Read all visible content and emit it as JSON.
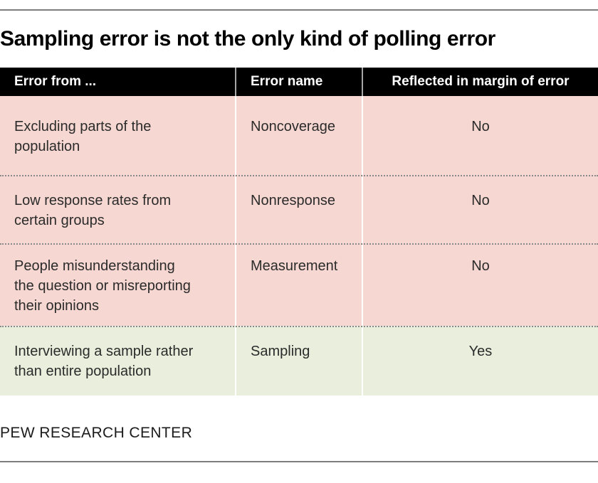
{
  "page": {
    "title": "Sampling error is not the only kind of polling error",
    "footer": "PEW RESEARCH CENTER"
  },
  "table": {
    "columns": [
      {
        "label": "Error from ...",
        "align": "left"
      },
      {
        "label": "Error name",
        "align": "left"
      },
      {
        "label": "Reflected in margin of error",
        "align": "center"
      }
    ],
    "rows": [
      {
        "error_from": "Excluding parts of the\npopulation",
        "error_name": "Noncoverage",
        "reflected": "No",
        "highlighted": false
      },
      {
        "error_from": "Low response rates from\ncertain groups",
        "error_name": "Nonresponse",
        "reflected": "No",
        "highlighted": false
      },
      {
        "error_from": "People misunderstanding\nthe question or misreporting\ntheir opinions",
        "error_name": "Measurement",
        "reflected": "No",
        "highlighted": false
      },
      {
        "error_from": "Interviewing a sample rather\nthan entire population",
        "error_name": "Sampling",
        "reflected": "Yes",
        "highlighted": true
      }
    ]
  },
  "colors": {
    "header_bg": "#000000",
    "header_text": "#ffffff",
    "row_bg_pink": "#f6d7d1",
    "row_bg_green": "#eaeedc",
    "column_divider": "#ffffff",
    "dotted_separator": "#8a8a8a",
    "horizontal_rule": "#7d7d7d",
    "body_text": "#2b2b2b",
    "title_text": "#000000"
  }
}
